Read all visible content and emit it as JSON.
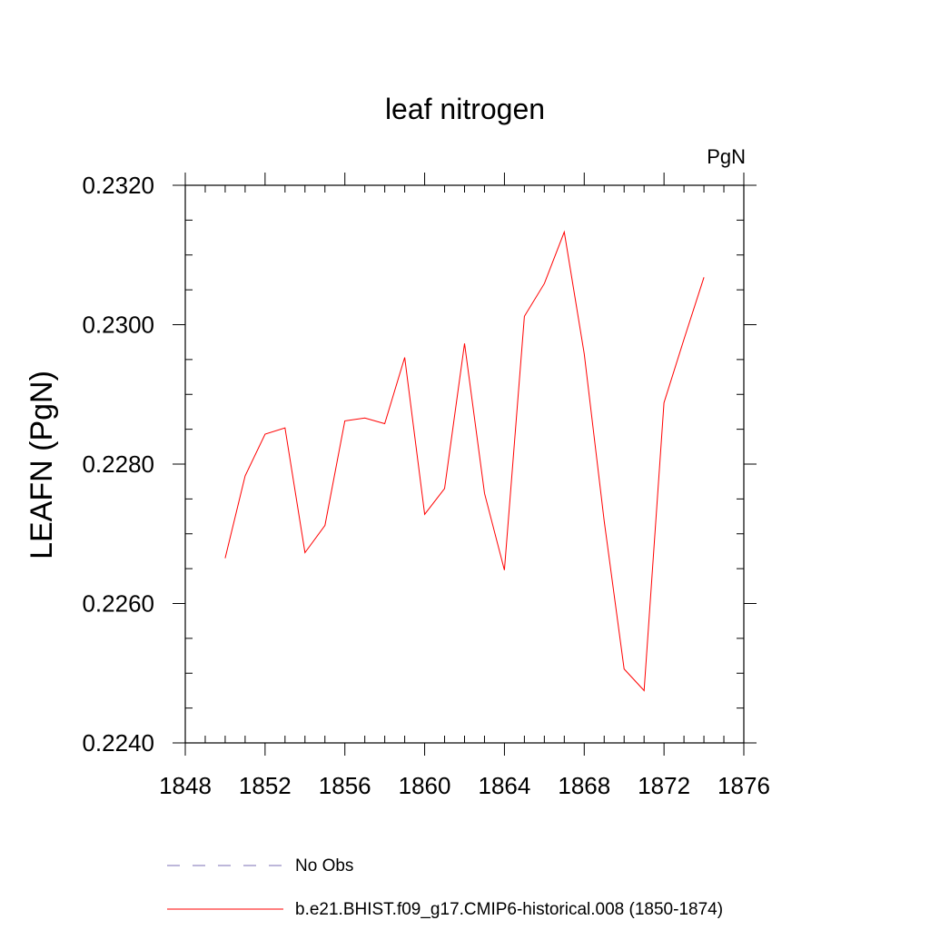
{
  "chart_data": {
    "type": "line",
    "title": "leaf nitrogen",
    "units": "PgN",
    "ylabel": "LEAFN  (PgN)",
    "xlim": [
      1848,
      1876
    ],
    "ylim": [
      0.224,
      0.232
    ],
    "xticks": [
      1848,
      1852,
      1856,
      1860,
      1864,
      1868,
      1872,
      1876
    ],
    "yticks": [
      "0.2240",
      "0.2260",
      "0.2280",
      "0.2300",
      "0.2320"
    ],
    "grid": false,
    "legend_position": "bottom",
    "series": [
      {
        "name": "b.e21.BHIST.f09_g17.CMIP6-historical.008 (1850-1874)",
        "color": "#ff0000",
        "style": "solid",
        "x": [
          1850,
          1851,
          1852,
          1853,
          1854,
          1855,
          1856,
          1857,
          1858,
          1859,
          1860,
          1861,
          1862,
          1863,
          1864,
          1865,
          1866,
          1867,
          1868,
          1869,
          1870,
          1871,
          1872,
          1873,
          1874
        ],
        "y": [
          0.22665,
          0.22783,
          0.22843,
          0.22852,
          0.22673,
          0.22712,
          0.22862,
          0.22866,
          0.22858,
          0.22953,
          0.22728,
          0.22765,
          0.22973,
          0.22758,
          0.22648,
          0.23012,
          0.23059,
          0.23133,
          0.22958,
          0.22718,
          0.22506,
          0.22475,
          0.22888,
          0.22979,
          0.23068
        ]
      }
    ],
    "legend": [
      {
        "label": "No Obs",
        "color": "#7b6fb5",
        "style": "dashed"
      },
      {
        "label": "b.e21.BHIST.f09_g17.CMIP6-historical.008 (1850-1874)",
        "color": "#ff0000",
        "style": "solid"
      }
    ]
  }
}
